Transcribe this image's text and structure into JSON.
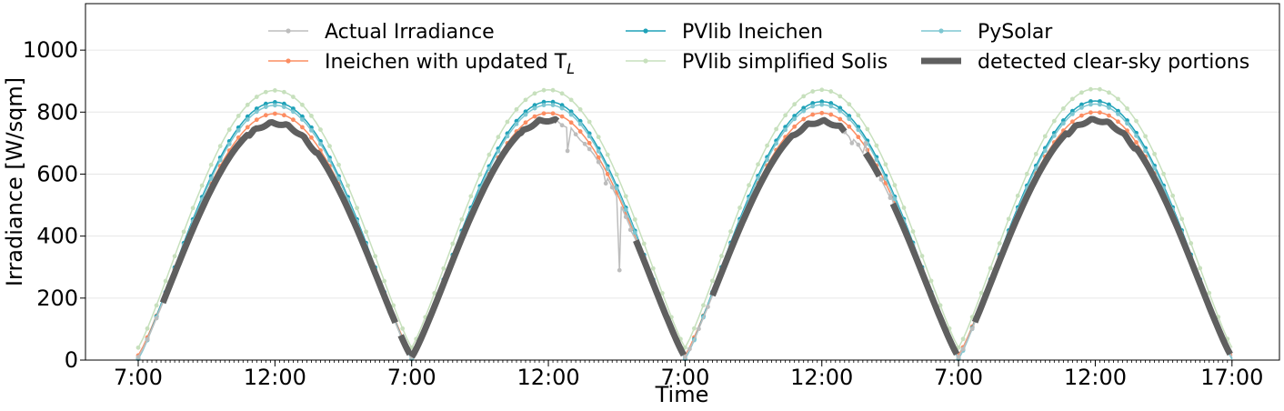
{
  "chart_data": {
    "type": "line",
    "title": "",
    "xlabel": "Time",
    "ylabel": "Irradiance [W/sqm]",
    "ylim": [
      0,
      1150
    ],
    "yticks": [
      0,
      200,
      400,
      600,
      800,
      1000
    ],
    "grid": "horizontal",
    "legend_position": "top",
    "days": 4,
    "day_start_hour": 7,
    "day_end_hour": 17,
    "x_ticks": [
      {
        "day": 0,
        "hour": 7,
        "label": "7:00"
      },
      {
        "day": 0,
        "hour": 12,
        "label": "12:00"
      },
      {
        "day": 1,
        "hour": 7,
        "label": "7:00"
      },
      {
        "day": 1,
        "hour": 12,
        "label": "12:00"
      },
      {
        "day": 2,
        "hour": 7,
        "label": "7:00"
      },
      {
        "day": 2,
        "hour": 12,
        "label": "12:00"
      },
      {
        "day": 3,
        "hour": 7,
        "label": "7:00"
      },
      {
        "day": 3,
        "hour": 12,
        "label": "12:00"
      },
      {
        "day": 3,
        "hour": 17,
        "label": "17:00"
      }
    ],
    "series": [
      {
        "name": "Actual Irradiance",
        "color": "#bdbdbd",
        "peaks": [
          770,
          780,
          775,
          780
        ],
        "start": 10,
        "dips": [
          {
            "day": 1,
            "hour": 12.7,
            "value": 675
          },
          {
            "day": 1,
            "hour": 13.4,
            "value": 690
          },
          {
            "day": 1,
            "hour": 14.1,
            "value": 570
          },
          {
            "day": 1,
            "hour": 14.6,
            "value": 290
          },
          {
            "day": 1,
            "hour": 15.0,
            "value": 420
          },
          {
            "day": 2,
            "hour": 13.1,
            "value": 700
          },
          {
            "day": 2,
            "hour": 13.6,
            "value": 700
          },
          {
            "day": 2,
            "hour": 14.5,
            "value": 540
          }
        ]
      },
      {
        "name": "Ineichen with updated T",
        "name_subscript": "L",
        "color": "#fc8d62",
        "peaks": [
          795,
          797,
          797,
          800
        ],
        "start": 15
      },
      {
        "name": "PVlib Ineichen",
        "color": "#1fa2b8",
        "peaks": [
          832,
          834,
          834,
          836
        ],
        "start": 5
      },
      {
        "name": "PVlib simplified Solis",
        "color": "#c7e0bd",
        "peaks": [
          870,
          872,
          872,
          875
        ],
        "start": 40
      },
      {
        "name": "PySolar",
        "color": "#7ec7d2",
        "peaks": [
          822,
          824,
          824,
          826
        ],
        "start": 3
      },
      {
        "name": "detected clear-sky portions",
        "color": "#5f5f5f",
        "segments": [
          {
            "day": 0,
            "from": 7.9,
            "to": 16.4
          },
          {
            "day": 0,
            "from": 16.6,
            "to": 17.0
          },
          {
            "day": 1,
            "from": 7.0,
            "to": 12.4
          },
          {
            "day": 1,
            "from": 15.2,
            "to": 17.0
          },
          {
            "day": 2,
            "from": 8.0,
            "to": 12.9
          },
          {
            "day": 2,
            "from": 13.6,
            "to": 14.1
          },
          {
            "day": 2,
            "from": 14.6,
            "to": 17.0
          },
          {
            "day": 3,
            "from": 7.6,
            "to": 17.0
          }
        ]
      }
    ]
  }
}
